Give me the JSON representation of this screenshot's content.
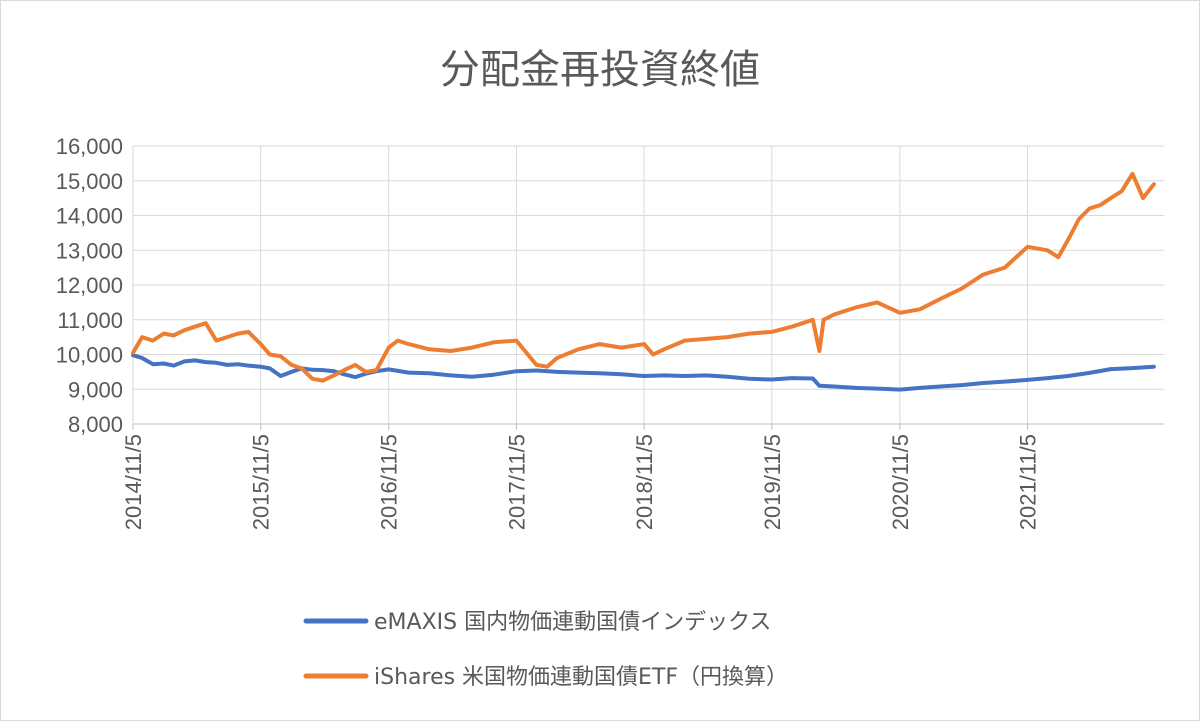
{
  "chart_data": {
    "type": "line",
    "title": "分配金再投資終値",
    "ylim": [
      8000,
      16000
    ],
    "yticks": [
      "8,000",
      "9,000",
      "10,000",
      "11,000",
      "12,000",
      "13,000",
      "14,000",
      "15,000",
      "16,000"
    ],
    "xticks": [
      "2014/11/5",
      "2015/11/5",
      "2016/11/5",
      "2017/11/5",
      "2018/11/5",
      "2019/11/5",
      "2020/11/5",
      "2021/11/5"
    ],
    "grid": true,
    "legend_position": "bottom",
    "series": [
      {
        "name": "eMAXIS 国内物価連動国債インデックス",
        "color": "#4472C4",
        "x": [
          "2014/11/5",
          "2014/12/1",
          "2015/1/1",
          "2015/2/1",
          "2015/3/1",
          "2015/4/1",
          "2015/5/1",
          "2015/6/1",
          "2015/7/1",
          "2015/8/1",
          "2015/9/1",
          "2015/10/1",
          "2015/11/5",
          "2015/12/1",
          "2016/1/1",
          "2016/2/1",
          "2016/3/1",
          "2016/4/1",
          "2016/5/1",
          "2016/6/1",
          "2016/7/1",
          "2016/8/1",
          "2016/9/1",
          "2016/10/1",
          "2016/11/5",
          "2017/1/1",
          "2017/3/1",
          "2017/5/1",
          "2017/7/1",
          "2017/9/1",
          "2017/11/5",
          "2018/1/1",
          "2018/3/1",
          "2018/5/1",
          "2018/7/1",
          "2018/9/1",
          "2018/11/5",
          "2019/1/1",
          "2019/3/1",
          "2019/5/1",
          "2019/7/1",
          "2019/9/1",
          "2019/11/5",
          "2020/1/1",
          "2020/3/1",
          "2020/3/20",
          "2020/5/1",
          "2020/7/1",
          "2020/9/1",
          "2020/11/5",
          "2021/1/1",
          "2021/3/1",
          "2021/5/1",
          "2021/7/1",
          "2021/9/1",
          "2021/11/5",
          "2022/1/1",
          "2022/3/1",
          "2022/5/1",
          "2022/7/1",
          "2022/9/1",
          "2022/11/1"
        ],
        "values": [
          9980,
          9900,
          9720,
          9740,
          9680,
          9800,
          9830,
          9780,
          9760,
          9700,
          9720,
          9680,
          9650,
          9600,
          9380,
          9500,
          9600,
          9560,
          9550,
          9520,
          9430,
          9350,
          9450,
          9520,
          9570,
          9480,
          9460,
          9400,
          9360,
          9420,
          9520,
          9540,
          9500,
          9480,
          9460,
          9430,
          9380,
          9400,
          9380,
          9400,
          9360,
          9300,
          9280,
          9320,
          9310,
          9100,
          9080,
          9040,
          9020,
          8990,
          9040,
          9080,
          9120,
          9180,
          9220,
          9270,
          9320,
          9380,
          9470,
          9580,
          9610,
          9650
        ]
      },
      {
        "name": "iShares 米国物価連動国債ETF（円換算）",
        "color": "#ED7D31",
        "x": [
          "2014/11/5",
          "2014/12/1",
          "2015/1/1",
          "2015/2/1",
          "2015/3/1",
          "2015/4/1",
          "2015/5/1",
          "2015/6/1",
          "2015/7/1",
          "2015/8/1",
          "2015/9/1",
          "2015/10/1",
          "2015/11/5",
          "2015/12/1",
          "2016/1/1",
          "2016/2/1",
          "2016/3/1",
          "2016/4/1",
          "2016/5/1",
          "2016/6/1",
          "2016/7/1",
          "2016/8/1",
          "2016/9/1",
          "2016/10/1",
          "2016/11/5",
          "2016/12/1",
          "2017/1/1",
          "2017/3/1",
          "2017/5/1",
          "2017/7/1",
          "2017/9/1",
          "2017/11/5",
          "2018/1/1",
          "2018/2/1",
          "2018/3/1",
          "2018/5/1",
          "2018/7/1",
          "2018/9/1",
          "2018/11/5",
          "2018/12/1",
          "2019/1/1",
          "2019/3/1",
          "2019/5/1",
          "2019/7/1",
          "2019/9/1",
          "2019/11/5",
          "2020/1/1",
          "2020/3/1",
          "2020/3/20",
          "2020/4/1",
          "2020/5/1",
          "2020/7/1",
          "2020/9/1",
          "2020/11/5",
          "2021/1/1",
          "2021/3/1",
          "2021/5/1",
          "2021/7/1",
          "2021/9/1",
          "2021/11/5",
          "2022/1/1",
          "2022/2/1",
          "2022/3/1",
          "2022/4/1",
          "2022/5/1",
          "2022/6/1",
          "2022/7/1",
          "2022/8/1",
          "2022/9/1",
          "2022/10/1",
          "2022/11/1"
        ],
        "values": [
          10050,
          10500,
          10400,
          10600,
          10550,
          10700,
          10800,
          10900,
          10400,
          10500,
          10600,
          10650,
          10300,
          10000,
          9950,
          9700,
          9600,
          9300,
          9250,
          9400,
          9550,
          9700,
          9500,
          9550,
          10200,
          10400,
          10300,
          10150,
          10100,
          10200,
          10350,
          10400,
          9700,
          9650,
          9900,
          10150,
          10300,
          10200,
          10300,
          10000,
          10150,
          10400,
          10450,
          10500,
          10600,
          10650,
          10800,
          11000,
          10100,
          11000,
          11150,
          11350,
          11500,
          11200,
          11300,
          11600,
          11900,
          12300,
          12500,
          13100,
          13000,
          12800,
          13300,
          13900,
          14200,
          14300,
          14500,
          14700,
          15200,
          14500,
          14900
        ]
      }
    ]
  }
}
